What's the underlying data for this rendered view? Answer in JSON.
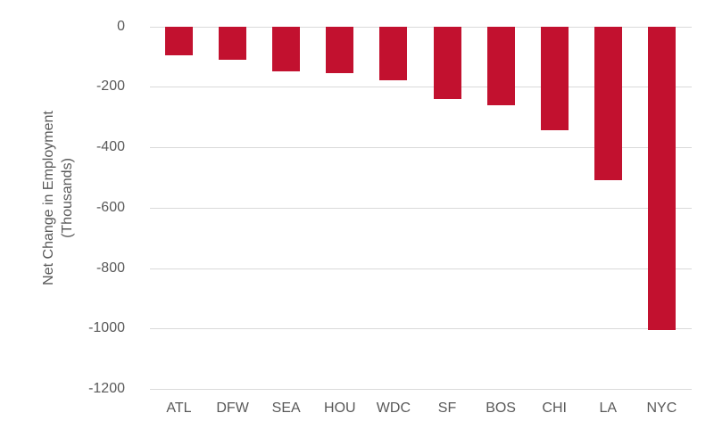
{
  "chart_data": {
    "type": "bar",
    "title": "",
    "xlabel": "",
    "ylabel": "Net Change in Employment (Thousands)",
    "ylabel_lines": [
      "Net Change in Employment",
      "(Thousands)"
    ],
    "categories": [
      "ATL",
      "DFW",
      "SEA",
      "HOU",
      "WDC",
      "SF",
      "BOS",
      "CHI",
      "LA",
      "NYC"
    ],
    "values": [
      -95,
      -110,
      -150,
      -155,
      -180,
      -240,
      -260,
      -345,
      -510,
      -1005
    ],
    "yticks": [
      0,
      -200,
      -400,
      -600,
      -800,
      -1000,
      -1200
    ],
    "ylim": [
      -1200,
      0
    ],
    "legend": "none",
    "grid": "horizontal",
    "bar_color": "#C2112F",
    "text_color": "#595959",
    "gridline_color": "#DADADA",
    "background_color": "#FFFFFF"
  }
}
